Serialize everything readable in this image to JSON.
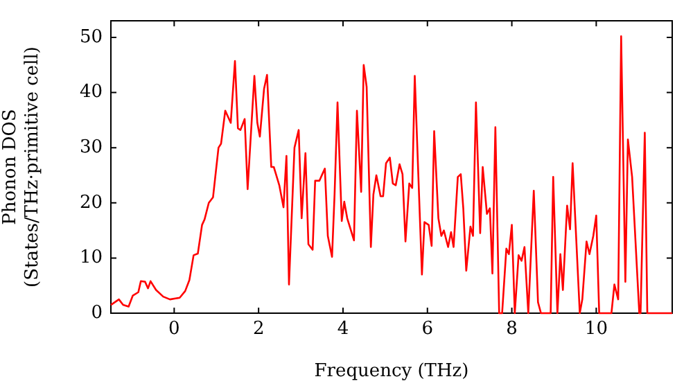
{
  "chart_data": {
    "type": "line",
    "xlabel": "Frequency (THz)",
    "ylabel": "Phonon DOS\n(States/THz·primitive cell)",
    "xlim": [
      -1.5,
      11.8
    ],
    "ylim": [
      0,
      53
    ],
    "xticks": [
      0,
      2,
      4,
      6,
      8,
      10
    ],
    "yticks": [
      0,
      10,
      20,
      30,
      40,
      50
    ],
    "grid": false,
    "legend": false,
    "marker": "none",
    "line_style": "solid",
    "series": [
      {
        "color": "#ff0000",
        "x": [
          -1.5,
          -1.31,
          -1.21,
          -1.08,
          -0.98,
          -0.85,
          -0.79,
          -0.69,
          -0.62,
          -0.56,
          -0.43,
          -0.26,
          -0.1,
          0.13,
          0.26,
          0.36,
          0.46,
          0.56,
          0.66,
          0.72,
          0.82,
          0.92,
          1.05,
          1.11,
          1.21,
          1.34,
          1.44,
          1.51,
          1.57,
          1.67,
          1.74,
          1.9,
          1.97,
          2.03,
          2.13,
          2.2,
          2.3,
          2.36,
          2.49,
          2.59,
          2.66,
          2.72,
          2.85,
          2.95,
          3.02,
          3.11,
          3.18,
          3.28,
          3.34,
          3.44,
          3.51,
          3.57,
          3.64,
          3.74,
          3.8,
          3.87,
          3.97,
          4.03,
          4.1,
          4.26,
          4.33,
          4.43,
          4.49,
          4.56,
          4.66,
          4.72,
          4.79,
          4.89,
          4.95,
          5.02,
          5.11,
          5.18,
          5.25,
          5.34,
          5.41,
          5.48,
          5.57,
          5.64,
          5.7,
          5.87,
          5.93,
          6.03,
          6.1,
          6.16,
          6.26,
          6.33,
          6.39,
          6.49,
          6.56,
          6.62,
          6.72,
          6.79,
          6.85,
          6.92,
          7.02,
          7.08,
          7.15,
          7.25,
          7.31,
          7.41,
          7.48,
          7.54,
          7.61,
          7.7,
          7.77,
          7.87,
          7.93,
          8.0,
          8.07,
          8.16,
          8.23,
          8.3,
          8.39,
          8.52,
          8.62,
          8.69,
          8.92,
          8.98,
          9.08,
          9.15,
          9.21,
          9.31,
          9.38,
          9.44,
          9.61,
          9.67,
          9.77,
          9.84,
          9.93,
          10.0,
          10.07,
          10.36,
          10.43,
          10.52,
          10.59,
          10.69,
          10.75,
          10.85,
          11.02,
          11.05,
          11.15,
          11.21,
          11.8
        ],
        "values": [
          1.5,
          2.5,
          1.5,
          1.2,
          3.2,
          3.8,
          5.8,
          5.7,
          4.5,
          5.8,
          4.2,
          3,
          2.5,
          2.8,
          4,
          6,
          10.5,
          10.8,
          16,
          17,
          20,
          21,
          30,
          30.7,
          36.7,
          34.5,
          45.7,
          33.5,
          33.2,
          35.2,
          22.5,
          43,
          34.5,
          32,
          40.7,
          43.2,
          26.5,
          26.5,
          23.2,
          19.2,
          28.5,
          5.2,
          30,
          33.2,
          17.2,
          29,
          12.5,
          11.5,
          24,
          24,
          25.2,
          26.2,
          14,
          10.2,
          21.5,
          38.2,
          16.7,
          20.2,
          17.2,
          13.2,
          36.7,
          22,
          45,
          41,
          12,
          21.5,
          25,
          21.2,
          21.2,
          27.2,
          28.2,
          23.5,
          23.2,
          27,
          25.2,
          13,
          23.5,
          22.7,
          43,
          7,
          16.5,
          16,
          12.2,
          33,
          17.2,
          14,
          15,
          12,
          14.7,
          12,
          24.7,
          25.2,
          19,
          7.7,
          15.7,
          14,
          38.2,
          14.5,
          26.5,
          18,
          19,
          7.2,
          33.7,
          0,
          0,
          11.7,
          10.7,
          16,
          0,
          10.5,
          9.5,
          12,
          0,
          22.2,
          2,
          0,
          0,
          24.7,
          0,
          10.7,
          4.2,
          19.5,
          15.2,
          27.2,
          0,
          2.5,
          13,
          10.7,
          14,
          17.7,
          0,
          0,
          5.2,
          2.5,
          50.2,
          5.7,
          31.5,
          24.7,
          0,
          0,
          32.7,
          0,
          0
        ]
      }
    ]
  }
}
